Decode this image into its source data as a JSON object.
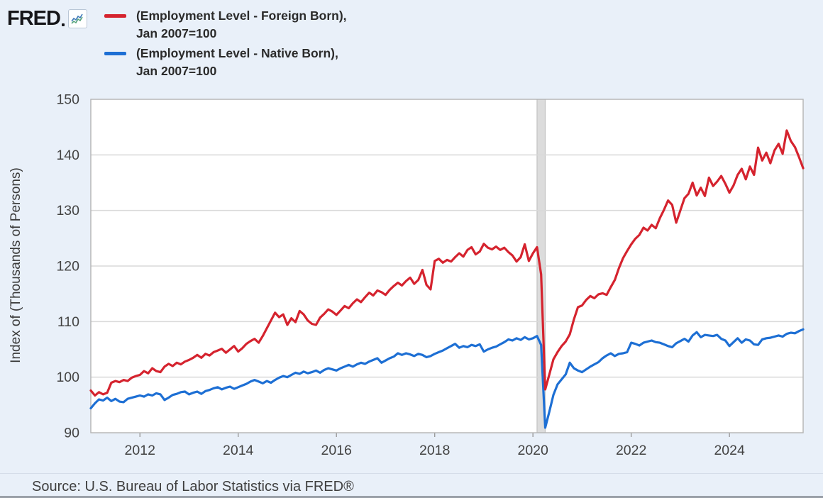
{
  "logo": {
    "text": "FRED",
    "icon": "fred-sparkline-icon"
  },
  "legend": {
    "items": [
      {
        "line1": "(Employment Level - Foreign Born),",
        "line2": "Jan 2007=100",
        "color": "#d5232e"
      },
      {
        "line1": "(Employment Level - Native Born),",
        "line2": "Jan 2007=100",
        "color": "#1d6fd4"
      }
    ]
  },
  "source": "Source: U.S. Bureau of Labor Statistics via FRED®",
  "colors": {
    "page_background": "#e9f0f9",
    "plot_background": "#ffffff",
    "gridline": "#d9d9d9",
    "plot_border": "#b3b3b3",
    "recession_band": "#dcdcdc",
    "recession_band_edge": "#c3c3c3",
    "axis_text": "#434343",
    "foreign_born_line": "#d5232e",
    "native_born_line": "#1d6fd4"
  },
  "chart_data": {
    "type": "line",
    "title": "",
    "xlabel": "",
    "ylabel": "Index of (Thousands of Persons)",
    "ylim": [
      90,
      150
    ],
    "yticks": [
      90,
      100,
      110,
      120,
      130,
      140,
      150
    ],
    "xticks": [
      2012,
      2014,
      2016,
      2018,
      2020,
      2022,
      2024
    ],
    "x_start": "2011-01",
    "x_end": "2025-07",
    "frequency": "monthly",
    "grid": "horizontal",
    "legend_position": "top-left-above-chart",
    "recession_band": {
      "start": "2020-02",
      "end": "2020-04"
    },
    "series": [
      {
        "name": "(Employment Level - Foreign Born), Jan 2007=100",
        "color": "#d5232e",
        "values": [
          97.6,
          96.7,
          97.3,
          96.9,
          97.2,
          99.0,
          99.3,
          99.1,
          99.5,
          99.3,
          99.9,
          100.2,
          100.4,
          101.1,
          100.7,
          101.6,
          101.1,
          100.9,
          101.9,
          102.4,
          102.0,
          102.6,
          102.3,
          102.8,
          103.1,
          103.5,
          104.0,
          103.5,
          104.2,
          103.9,
          104.5,
          104.8,
          105.1,
          104.4,
          105.0,
          105.6,
          104.6,
          105.2,
          106.0,
          106.5,
          106.9,
          106.2,
          107.4,
          108.8,
          110.2,
          111.6,
          110.8,
          111.3,
          109.4,
          110.6,
          109.9,
          111.9,
          111.3,
          110.2,
          109.6,
          109.4,
          110.7,
          111.4,
          112.2,
          111.8,
          111.2,
          112.0,
          112.8,
          112.4,
          113.3,
          114.0,
          113.5,
          114.4,
          115.2,
          114.7,
          115.6,
          115.3,
          114.8,
          115.7,
          116.4,
          117.0,
          116.5,
          117.3,
          117.9,
          116.8,
          117.5,
          119.3,
          116.6,
          115.8,
          120.9,
          121.3,
          120.6,
          121.1,
          120.8,
          121.6,
          122.3,
          121.7,
          122.9,
          123.4,
          122.1,
          122.6,
          124.0,
          123.3,
          123.0,
          123.5,
          122.9,
          123.3,
          122.5,
          121.9,
          120.8,
          121.6,
          123.9,
          120.9,
          122.3,
          123.4,
          118.5,
          97.8,
          100.5,
          103.2,
          104.5,
          105.6,
          106.4,
          107.7,
          110.4,
          112.6,
          112.9,
          113.9,
          114.6,
          114.2,
          114.9,
          115.1,
          114.8,
          116.2,
          117.5,
          119.6,
          121.4,
          122.7,
          123.9,
          124.9,
          125.6,
          126.9,
          126.4,
          127.4,
          126.8,
          128.6,
          130.1,
          131.8,
          131.0,
          127.8,
          130.0,
          132.2,
          133.0,
          135.0,
          132.7,
          134.1,
          132.6,
          135.9,
          134.4,
          135.2,
          136.2,
          134.8,
          133.2,
          134.5,
          136.4,
          137.5,
          135.6,
          137.9,
          136.4,
          141.3,
          139.0,
          140.4,
          138.5,
          140.8,
          142.0,
          140.2,
          144.4,
          142.5,
          141.4,
          139.6,
          137.6
        ]
      },
      {
        "name": "(Employment Level - Native Born), Jan 2007=100",
        "color": "#1d6fd4",
        "values": [
          94.4,
          95.3,
          96.0,
          95.8,
          96.3,
          95.7,
          96.1,
          95.6,
          95.5,
          96.1,
          96.3,
          96.5,
          96.7,
          96.5,
          96.9,
          96.7,
          97.1,
          96.9,
          95.9,
          96.3,
          96.8,
          97.0,
          97.3,
          97.4,
          96.9,
          97.2,
          97.4,
          97.0,
          97.5,
          97.7,
          98.0,
          98.2,
          97.8,
          98.1,
          98.3,
          97.9,
          98.2,
          98.5,
          98.8,
          99.2,
          99.5,
          99.2,
          98.9,
          99.3,
          99.0,
          99.5,
          99.9,
          100.2,
          100.0,
          100.4,
          100.8,
          100.6,
          101.0,
          100.7,
          100.9,
          101.2,
          100.8,
          101.3,
          101.6,
          101.4,
          101.2,
          101.6,
          101.9,
          102.2,
          101.9,
          102.3,
          102.6,
          102.4,
          102.8,
          103.1,
          103.4,
          102.6,
          103.0,
          103.4,
          103.7,
          104.3,
          104.0,
          104.3,
          104.1,
          103.8,
          104.2,
          104.0,
          103.6,
          103.8,
          104.2,
          104.5,
          104.8,
          105.2,
          105.6,
          106.0,
          105.3,
          105.6,
          105.4,
          105.8,
          105.6,
          105.9,
          104.6,
          105.0,
          105.3,
          105.5,
          105.9,
          106.3,
          106.8,
          106.6,
          107.0,
          106.7,
          107.2,
          106.8,
          107.0,
          107.4,
          105.8,
          90.9,
          93.8,
          96.8,
          98.7,
          99.6,
          100.5,
          102.6,
          101.6,
          101.2,
          100.9,
          101.4,
          101.9,
          102.3,
          102.7,
          103.4,
          103.9,
          104.3,
          103.8,
          104.2,
          104.3,
          104.5,
          106.2,
          106.0,
          105.7,
          106.2,
          106.4,
          106.6,
          106.3,
          106.2,
          105.9,
          105.6,
          105.4,
          106.1,
          106.5,
          106.9,
          106.4,
          107.5,
          108.1,
          107.2,
          107.6,
          107.5,
          107.4,
          107.6,
          106.9,
          106.6,
          105.6,
          106.3,
          107.0,
          106.2,
          106.8,
          106.6,
          105.9,
          105.8,
          106.8,
          107.0,
          107.1,
          107.3,
          107.5,
          107.3,
          107.8,
          108.0,
          107.9,
          108.3,
          108.6
        ]
      }
    ]
  }
}
